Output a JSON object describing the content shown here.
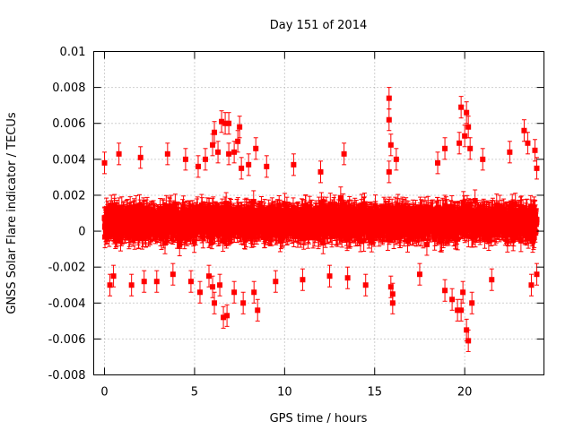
{
  "chart_data": {
    "type": "scatter",
    "title": "Day 151 of 2014",
    "xlabel": "GPS time / hours",
    "ylabel": "GNSS Solar Flare indicator / TECUs",
    "xlim": [
      -0.6,
      24.4
    ],
    "ylim": [
      -0.008,
      0.01
    ],
    "x_ticks": [
      0,
      5,
      10,
      15,
      20
    ],
    "x_tick_labels": [
      "0",
      "5",
      "10",
      "15",
      "20"
    ],
    "y_ticks": [
      -0.008,
      -0.006,
      -0.004,
      -0.002,
      0,
      0.002,
      0.004,
      0.006,
      0.008,
      0.01
    ],
    "y_tick_labels": [
      "-0.008",
      "-0.006",
      "-0.004",
      "-0.002",
      "0",
      "0.002",
      "0.004",
      "0.006",
      "0.008",
      "0.01"
    ],
    "grid": true,
    "marker": "square",
    "error_bars": true,
    "error_bar_halfwidth": 0.0006,
    "color": "#ff0000",
    "series": [
      {
        "name": "solar flare indicator",
        "x_start": 0.0,
        "x_end": 24.0,
        "n_points": 2880,
        "typical_range": [
          -0.0022,
          0.0032
        ],
        "mean": 0.0005,
        "points": [
          [
            0.0,
            0.0038
          ],
          [
            0.3,
            -0.003
          ],
          [
            0.5,
            -0.0025
          ],
          [
            0.8,
            0.0043
          ],
          [
            1.5,
            -0.003
          ],
          [
            2.0,
            0.0041
          ],
          [
            2.2,
            -0.0028
          ],
          [
            2.9,
            -0.0028
          ],
          [
            3.5,
            0.0043
          ],
          [
            3.8,
            -0.0024
          ],
          [
            4.5,
            0.004
          ],
          [
            4.8,
            -0.0028
          ],
          [
            5.2,
            0.0036
          ],
          [
            5.3,
            -0.0034
          ],
          [
            5.6,
            0.004
          ],
          [
            5.8,
            -0.0025
          ],
          [
            6.0,
            0.0048
          ],
          [
            6.0,
            -0.0031
          ],
          [
            6.1,
            -0.004
          ],
          [
            6.1,
            0.0055
          ],
          [
            6.3,
            0.0044
          ],
          [
            6.4,
            -0.003
          ],
          [
            6.5,
            0.0061
          ],
          [
            6.6,
            -0.0048
          ],
          [
            6.7,
            0.006
          ],
          [
            6.8,
            -0.0047
          ],
          [
            6.9,
            0.006
          ],
          [
            6.9,
            0.0043
          ],
          [
            7.2,
            -0.0034
          ],
          [
            7.2,
            0.0044
          ],
          [
            7.4,
            0.005
          ],
          [
            7.5,
            0.0058
          ],
          [
            7.6,
            0.0035
          ],
          [
            7.7,
            -0.004
          ],
          [
            8.0,
            0.0037
          ],
          [
            8.3,
            -0.0034
          ],
          [
            8.4,
            0.0046
          ],
          [
            8.5,
            -0.0044
          ],
          [
            9.0,
            0.0036
          ],
          [
            9.5,
            -0.0028
          ],
          [
            10.5,
            0.0037
          ],
          [
            11.0,
            -0.0027
          ],
          [
            12.0,
            0.0033
          ],
          [
            12.5,
            -0.0025
          ],
          [
            13.3,
            0.0043
          ],
          [
            13.5,
            -0.0026
          ],
          [
            14.5,
            -0.003
          ],
          [
            15.8,
            0.0074
          ],
          [
            15.8,
            0.0062
          ],
          [
            15.9,
            0.0048
          ],
          [
            15.8,
            0.0033
          ],
          [
            15.9,
            -0.0031
          ],
          [
            16.0,
            -0.0035
          ],
          [
            16.0,
            -0.004
          ],
          [
            16.2,
            0.004
          ],
          [
            17.5,
            -0.0024
          ],
          [
            18.5,
            0.0038
          ],
          [
            18.9,
            0.0046
          ],
          [
            18.9,
            -0.0033
          ],
          [
            19.3,
            -0.0038
          ],
          [
            19.6,
            -0.0044
          ],
          [
            19.7,
            0.0049
          ],
          [
            19.8,
            0.0069
          ],
          [
            19.8,
            -0.0044
          ],
          [
            19.9,
            -0.0034
          ],
          [
            20.0,
            0.0053
          ],
          [
            20.1,
            -0.0055
          ],
          [
            20.1,
            0.0066
          ],
          [
            20.2,
            -0.0061
          ],
          [
            20.2,
            0.0058
          ],
          [
            20.3,
            0.0046
          ],
          [
            20.4,
            -0.004
          ],
          [
            21.0,
            0.004
          ],
          [
            21.5,
            -0.0027
          ],
          [
            22.5,
            0.0044
          ],
          [
            23.3,
            0.0056
          ],
          [
            23.5,
            0.0049
          ],
          [
            23.7,
            -0.003
          ],
          [
            23.9,
            0.0045
          ],
          [
            24.0,
            -0.0024
          ],
          [
            24.0,
            0.0035
          ]
        ]
      }
    ]
  }
}
